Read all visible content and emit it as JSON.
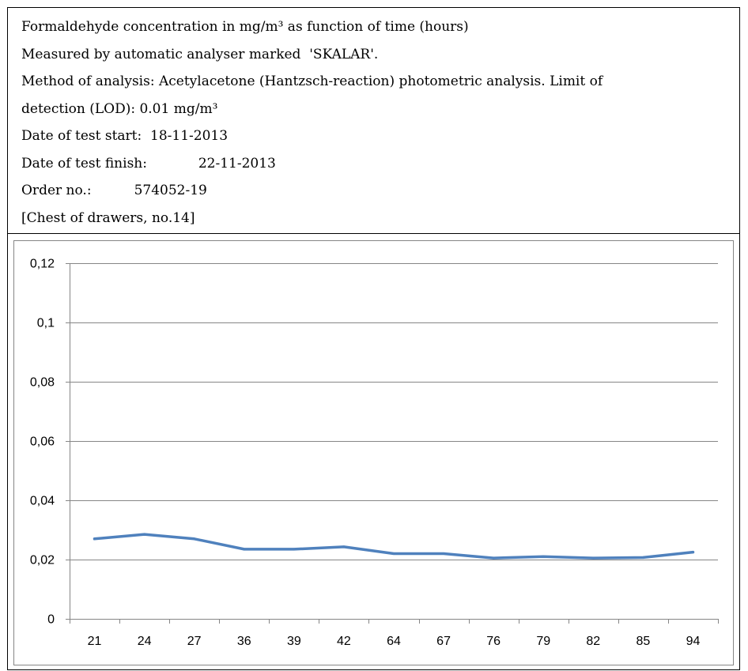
{
  "header": {
    "line1": "Formaldehyde concentration in mg/m³ as function of time (hours)",
    "line2": "Measured by automatic analyser marked  'SKALAR'.",
    "line3": "Method of analysis: Acetylacetone (Hantzsch-reaction) photometric analysis. Limit of",
    "line4": "detection (LOD): 0.01 mg/m³",
    "line5": "Date of test start:  18-11-2013",
    "line6": "Date of test finish:            22-11-2013",
    "line7": "Order no.:          574052-19",
    "line8": "[Chest of drawers, no.14]"
  },
  "chart_data": {
    "type": "line",
    "title": "",
    "xlabel": "",
    "ylabel": "",
    "categories": [
      "21",
      "24",
      "27",
      "36",
      "39",
      "42",
      "64",
      "67",
      "76",
      "79",
      "82",
      "85",
      "94"
    ],
    "series": [
      {
        "values": [
          0.027,
          0.0285,
          0.027,
          0.0235,
          0.0235,
          0.0243,
          0.022,
          0.022,
          0.0205,
          0.021,
          0.0205,
          0.0207,
          0.0225
        ],
        "color": "#4F81BD"
      }
    ],
    "ylim": [
      0,
      0.12
    ],
    "yticks": [
      0,
      0.02,
      0.04,
      0.06,
      0.08,
      0.1,
      0.12
    ],
    "ytick_labels": [
      "0",
      "0,02",
      "0,04",
      "0,06",
      "0,08",
      "0,1",
      "0,12"
    ],
    "grid": true,
    "legend": "none"
  }
}
